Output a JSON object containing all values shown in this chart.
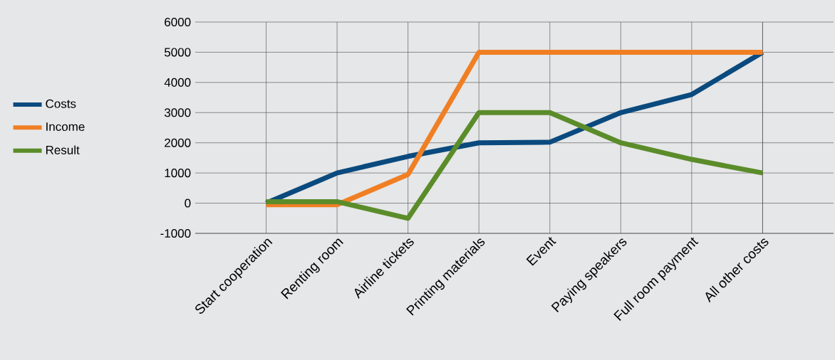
{
  "chart_data": {
    "type": "line",
    "categories": [
      "Start cooperation",
      "Renting room",
      "Airline tickets",
      "Printing materials",
      "Event",
      "Paying speakers",
      "Full room payment",
      "All other costs"
    ],
    "series": [
      {
        "name": "Costs",
        "color": "#0a4a7e",
        "values": [
          0,
          1000,
          1550,
          2000,
          2020,
          3000,
          3600,
          5000
        ]
      },
      {
        "name": "Income",
        "color": "#f07f24",
        "values": [
          -50,
          -50,
          950,
          5000,
          5000,
          5000,
          5000,
          5000
        ]
      },
      {
        "name": "Result",
        "color": "#5b8c2a",
        "values": [
          50,
          50,
          -500,
          3000,
          3000,
          2000,
          1450,
          1000
        ]
      }
    ],
    "ylim": [
      -1000,
      6000
    ],
    "yticks": [
      -1000,
      0,
      1000,
      2000,
      3000,
      4000,
      5000,
      6000
    ],
    "grid": true,
    "legend": "left",
    "line_style": "solid"
  }
}
